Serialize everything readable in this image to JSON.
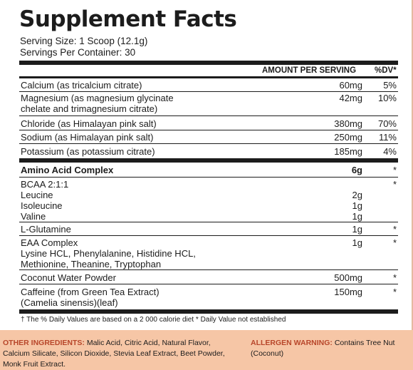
{
  "title": "Supplement Facts",
  "serving_size": "Serving Size: 1 Scoop (12.1g)",
  "servings_per_container": "Servings Per Container: 30",
  "headers": {
    "amount": "AMOUNT PER SERVING",
    "dv": "%DV*"
  },
  "minerals": [
    {
      "name": "Calcium (as tricalcium citrate)",
      "amount": "60mg",
      "dv": "5%"
    },
    {
      "name": "Magnesium (as magnesium glycinate\nchelate and trimagnesium citrate)",
      "amount": "42mg",
      "dv": "10%"
    },
    {
      "name": "Chloride (as Himalayan pink salt)",
      "amount": "380mg",
      "dv": "70%"
    },
    {
      "name": "Sodium (as Himalayan pink salt)",
      "amount": "250mg",
      "dv": "11%"
    },
    {
      "name": "Potassium (as potassium citrate)",
      "amount": "185mg",
      "dv": "4%"
    }
  ],
  "complex": {
    "name": "Amino Acid Complex",
    "amount": "6g",
    "dv": "*"
  },
  "bcaa": {
    "name": "BCAA 2:1:1\nLeucine\nIsoleucine\nValine",
    "amounts": "2g\n1g\n1g",
    "dv": "*"
  },
  "glutamine": {
    "name": "L-Glutamine",
    "amount": "1g",
    "dv": "*"
  },
  "eaa": {
    "name": "EAA Complex\nLysine HCL, Phenylalanine, Histidine HCL,\nMethionine, Theanine, Tryptophan",
    "amount": "1g",
    "dv": "*"
  },
  "coconut": {
    "name": "Coconut Water Powder",
    "amount": "500mg",
    "dv": "*"
  },
  "caffeine": {
    "name": "Caffeine (from Green Tea Extract)\n(Camelia sinensis)(leaf)",
    "amount": "150mg",
    "dv": "*"
  },
  "footnote": "† The % Daily Values are based on a 2 000 calorie diet  * Daily Value not established",
  "other_ingredients": {
    "label": "OTHER INGREDIENTS:",
    "text": " Malic Acid, Citric Acid, Natural Flavor, Calcium Silicate, Silicon Dioxide, Stevia Leaf Extract, Beet Powder, Monk Fruit Extract."
  },
  "allergen": {
    "label": "ALLERGEN WARNING:",
    "text": " Contains Tree Nut (Coconut)"
  }
}
